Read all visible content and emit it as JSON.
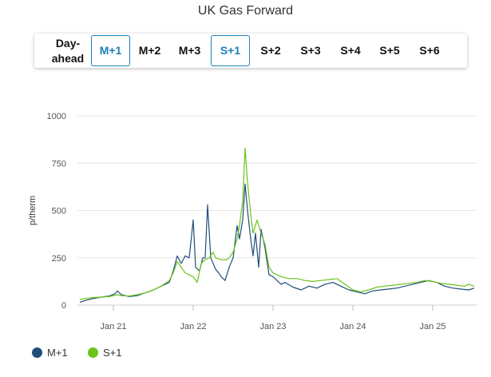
{
  "title": "UK Gas Forward",
  "tabs": [
    {
      "line1": "Day-",
      "line2": "ahead",
      "active": false
    },
    {
      "label": "M+1",
      "active": true
    },
    {
      "label": "M+2",
      "active": false
    },
    {
      "label": "M+3",
      "active": false
    },
    {
      "label": "S+1",
      "active": true
    },
    {
      "label": "S+2",
      "active": false
    },
    {
      "label": "S+3",
      "active": false
    },
    {
      "label": "S+4",
      "active": false
    },
    {
      "label": "S+5",
      "active": false
    },
    {
      "label": "S+6",
      "active": false
    }
  ],
  "legend": [
    {
      "name": "M+1",
      "color": "#1f4e79"
    },
    {
      "name": "S+1",
      "color": "#6cc31b"
    }
  ],
  "chart_data": {
    "type": "line",
    "ylabel": "p/therm",
    "ylim": [
      0,
      1000
    ],
    "yticks": [
      "0",
      "250",
      "500",
      "750",
      "1000"
    ],
    "xticks": [
      "Jan 21",
      "Jan 22",
      "Jan 23",
      "Jan 24",
      "Jan 25"
    ],
    "x_unit": "year",
    "x_range": [
      2020.55,
      2025.55
    ],
    "grid": "horizontal",
    "legend_position": "bottom-left",
    "series": [
      {
        "name": "M+1",
        "color": "#1f4e79",
        "points": [
          [
            2020.58,
            15
          ],
          [
            2020.65,
            25
          ],
          [
            2020.75,
            35
          ],
          [
            2020.85,
            42
          ],
          [
            2020.95,
            48
          ],
          [
            2021.02,
            60
          ],
          [
            2021.05,
            75
          ],
          [
            2021.1,
            55
          ],
          [
            2021.2,
            45
          ],
          [
            2021.3,
            50
          ],
          [
            2021.4,
            65
          ],
          [
            2021.5,
            80
          ],
          [
            2021.6,
            100
          ],
          [
            2021.7,
            120
          ],
          [
            2021.75,
            180
          ],
          [
            2021.8,
            260
          ],
          [
            2021.85,
            220
          ],
          [
            2021.9,
            260
          ],
          [
            2021.95,
            250
          ],
          [
            2022.0,
            450
          ],
          [
            2022.03,
            200
          ],
          [
            2022.08,
            180
          ],
          [
            2022.12,
            250
          ],
          [
            2022.15,
            250
          ],
          [
            2022.18,
            530
          ],
          [
            2022.22,
            250
          ],
          [
            2022.28,
            190
          ],
          [
            2022.32,
            170
          ],
          [
            2022.35,
            150
          ],
          [
            2022.4,
            130
          ],
          [
            2022.45,
            200
          ],
          [
            2022.5,
            250
          ],
          [
            2022.55,
            420
          ],
          [
            2022.58,
            350
          ],
          [
            2022.62,
            450
          ],
          [
            2022.65,
            640
          ],
          [
            2022.68,
            500
          ],
          [
            2022.72,
            350
          ],
          [
            2022.75,
            260
          ],
          [
            2022.78,
            380
          ],
          [
            2022.82,
            200
          ],
          [
            2022.85,
            400
          ],
          [
            2022.9,
            300
          ],
          [
            2022.95,
            160
          ],
          [
            2023.0,
            150
          ],
          [
            2023.05,
            130
          ],
          [
            2023.1,
            110
          ],
          [
            2023.15,
            120
          ],
          [
            2023.25,
            95
          ],
          [
            2023.35,
            80
          ],
          [
            2023.45,
            100
          ],
          [
            2023.55,
            90
          ],
          [
            2023.65,
            110
          ],
          [
            2023.75,
            120
          ],
          [
            2023.85,
            100
          ],
          [
            2023.95,
            80
          ],
          [
            2024.05,
            70
          ],
          [
            2024.15,
            60
          ],
          [
            2024.25,
            75
          ],
          [
            2024.35,
            80
          ],
          [
            2024.45,
            85
          ],
          [
            2024.55,
            90
          ],
          [
            2024.65,
            100
          ],
          [
            2024.75,
            110
          ],
          [
            2024.85,
            120
          ],
          [
            2024.95,
            130
          ],
          [
            2025.05,
            120
          ],
          [
            2025.15,
            100
          ],
          [
            2025.25,
            90
          ],
          [
            2025.35,
            85
          ],
          [
            2025.45,
            80
          ],
          [
            2025.52,
            90
          ]
        ]
      },
      {
        "name": "S+1",
        "color": "#6cc31b",
        "points": [
          [
            2020.58,
            30
          ],
          [
            2020.65,
            35
          ],
          [
            2020.75,
            40
          ],
          [
            2020.85,
            42
          ],
          [
            2020.95,
            45
          ],
          [
            2021.05,
            55
          ],
          [
            2021.1,
            50
          ],
          [
            2021.2,
            48
          ],
          [
            2021.3,
            55
          ],
          [
            2021.4,
            65
          ],
          [
            2021.5,
            80
          ],
          [
            2021.6,
            100
          ],
          [
            2021.7,
            130
          ],
          [
            2021.75,
            170
          ],
          [
            2021.8,
            230
          ],
          [
            2021.85,
            200
          ],
          [
            2021.9,
            170
          ],
          [
            2021.95,
            160
          ],
          [
            2022.0,
            150
          ],
          [
            2022.05,
            120
          ],
          [
            2022.1,
            220
          ],
          [
            2022.15,
            240
          ],
          [
            2022.2,
            250
          ],
          [
            2022.25,
            280
          ],
          [
            2022.28,
            250
          ],
          [
            2022.35,
            240
          ],
          [
            2022.42,
            240
          ],
          [
            2022.45,
            250
          ],
          [
            2022.5,
            280
          ],
          [
            2022.55,
            350
          ],
          [
            2022.58,
            420
          ],
          [
            2022.62,
            550
          ],
          [
            2022.65,
            830
          ],
          [
            2022.68,
            650
          ],
          [
            2022.72,
            480
          ],
          [
            2022.75,
            380
          ],
          [
            2022.8,
            450
          ],
          [
            2022.85,
            380
          ],
          [
            2022.9,
            320
          ],
          [
            2022.95,
            200
          ],
          [
            2023.0,
            170
          ],
          [
            2023.05,
            160
          ],
          [
            2023.1,
            150
          ],
          [
            2023.2,
            140
          ],
          [
            2023.3,
            140
          ],
          [
            2023.4,
            130
          ],
          [
            2023.5,
            125
          ],
          [
            2023.6,
            130
          ],
          [
            2023.7,
            135
          ],
          [
            2023.8,
            140
          ],
          [
            2023.9,
            110
          ],
          [
            2024.0,
            80
          ],
          [
            2024.1,
            70
          ],
          [
            2024.2,
            80
          ],
          [
            2024.3,
            95
          ],
          [
            2024.4,
            100
          ],
          [
            2024.5,
            105
          ],
          [
            2024.6,
            110
          ],
          [
            2024.7,
            115
          ],
          [
            2024.8,
            120
          ],
          [
            2024.9,
            130
          ],
          [
            2025.0,
            125
          ],
          [
            2025.1,
            115
          ],
          [
            2025.2,
            110
          ],
          [
            2025.3,
            105
          ],
          [
            2025.4,
            100
          ],
          [
            2025.45,
            110
          ],
          [
            2025.52,
            100
          ]
        ]
      }
    ]
  }
}
